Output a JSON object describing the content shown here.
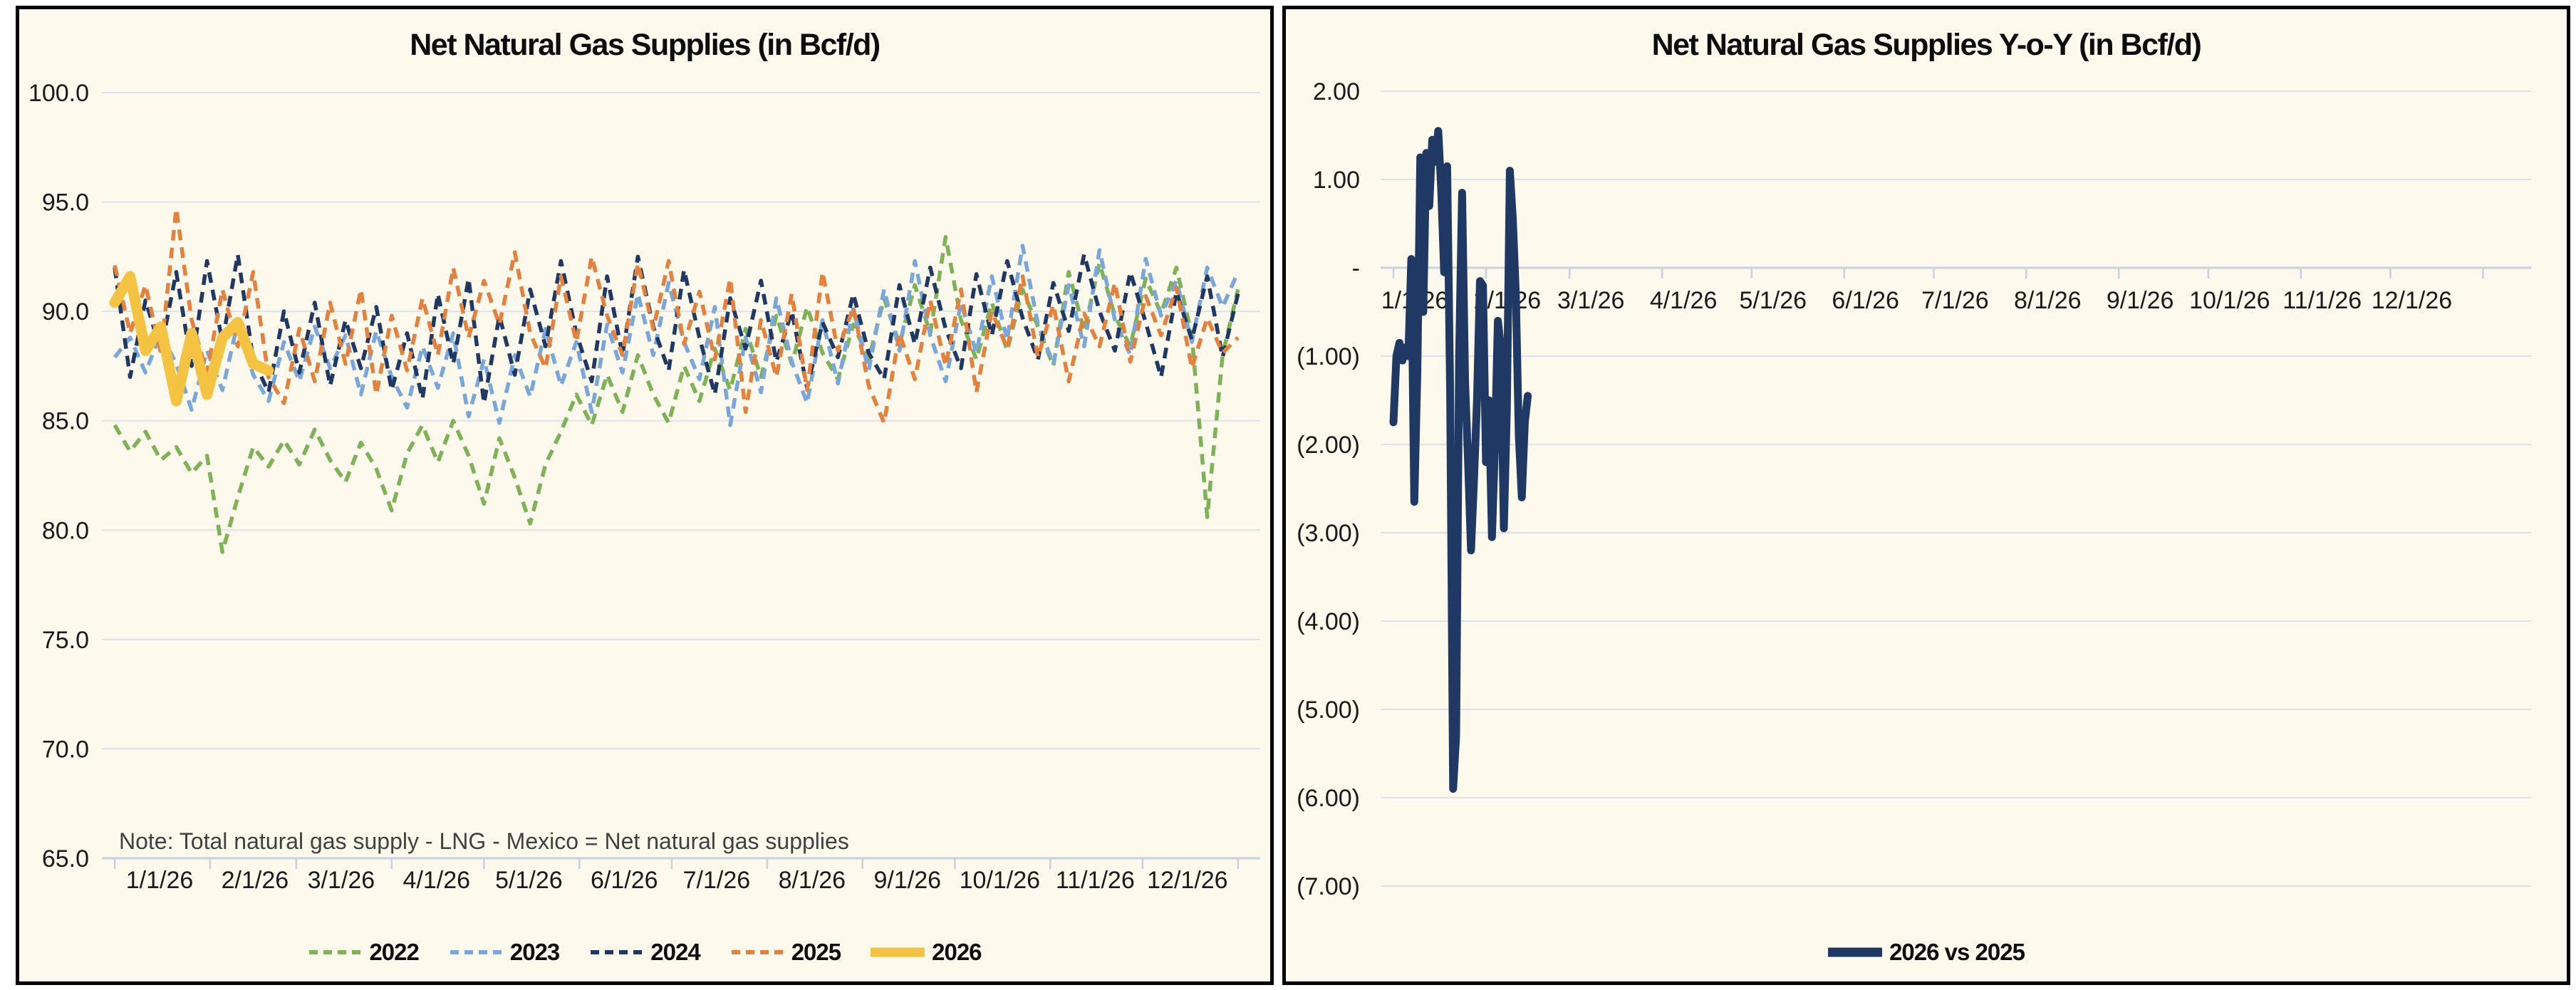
{
  "colors": {
    "panel_background": "#fdf9ec",
    "panel_border": "#000000",
    "gridline": "#dbe2ee",
    "axis_line": "#c7d1e0",
    "tick_mark": "#c7d1e0",
    "axis_text": "#1a1a1a",
    "note_text": "#404040"
  },
  "chart_data": [
    {
      "type": "line",
      "title": "Net Natural Gas Supplies (in Bcf/d)",
      "note": "Note: Total natural gas supply - LNG - Mexico = Net natural gas supplies",
      "ylim": [
        65,
        100
      ],
      "y_step": 5,
      "grid": true,
      "legend_position": "bottom",
      "x_unit": "day_of_year_2026_axis",
      "y_tick_labels": [
        "100.0",
        "95.0",
        "90.0",
        "85.0",
        "80.0",
        "75.0",
        "70.0",
        "65.0"
      ],
      "x_tick_labels": [
        "1/1/26",
        "2/1/26",
        "3/1/26",
        "4/1/26",
        "5/1/26",
        "6/1/26",
        "7/1/26",
        "8/1/26",
        "9/1/26",
        "10/1/26",
        "11/1/26",
        "12/1/26"
      ],
      "series": [
        {
          "name": "2022",
          "color": "#7db356",
          "style": "dashed",
          "start_day": 1,
          "day_step": 5,
          "values": [
            84.8,
            83.6,
            84.5,
            83.2,
            83.8,
            82.6,
            83.4,
            79.0,
            81.5,
            83.8,
            82.9,
            84.1,
            83.0,
            84.6,
            83.2,
            82.2,
            84.0,
            82.8,
            80.9,
            83.5,
            84.8,
            83.1,
            85.0,
            83.4,
            81.2,
            84.2,
            82.4,
            80.3,
            83.0,
            84.5,
            86.2,
            84.8,
            87.1,
            85.4,
            88.0,
            86.2,
            84.9,
            87.5,
            85.9,
            88.3,
            86.4,
            89.2,
            87.0,
            89.8,
            87.6,
            90.2,
            88.1,
            86.9,
            89.4,
            87.8,
            90.6,
            88.5,
            91.2,
            89.0,
            93.4,
            89.6,
            87.8,
            90.4,
            88.2,
            91.0,
            89.3,
            87.5,
            91.8,
            89.1,
            92.2,
            89.8,
            88.4,
            91.5,
            89.9,
            92.0,
            88.9,
            80.6,
            88.0,
            91.0
          ]
        },
        {
          "name": "2023",
          "color": "#79a7dc",
          "style": "dashed",
          "start_day": 1,
          "day_step": 5,
          "values": [
            87.9,
            88.8,
            87.2,
            89.0,
            87.6,
            85.5,
            88.2,
            86.4,
            89.5,
            87.1,
            85.9,
            88.6,
            86.8,
            89.3,
            87.4,
            88.9,
            86.2,
            89.1,
            87.0,
            85.6,
            88.4,
            86.5,
            89.0,
            85.2,
            87.8,
            84.9,
            88.0,
            86.1,
            89.2,
            86.6,
            88.6,
            85.4,
            89.4,
            87.2,
            90.8,
            88.0,
            91.3,
            88.6,
            86.9,
            90.2,
            84.8,
            88.8,
            86.3,
            90.6,
            87.7,
            85.8,
            89.6,
            86.7,
            90.1,
            87.3,
            91.0,
            88.2,
            92.3,
            88.9,
            86.8,
            90.4,
            88.1,
            91.6,
            88.7,
            93.0,
            89.4,
            87.6,
            91.2,
            88.4,
            92.8,
            89.6,
            88.0,
            92.4,
            89.8,
            91.4,
            88.6,
            92.0,
            90.2,
            91.8
          ]
        },
        {
          "name": "2024",
          "color": "#1f3864",
          "style": "dashed",
          "start_day": 1,
          "day_step": 5,
          "values": [
            92.0,
            87.0,
            90.5,
            88.2,
            91.8,
            87.5,
            92.3,
            88.6,
            92.6,
            87.8,
            86.3,
            90.0,
            87.2,
            90.4,
            86.6,
            89.6,
            87.4,
            90.2,
            86.4,
            89.0,
            86.0,
            90.8,
            87.6,
            91.5,
            85.8,
            89.8,
            87.1,
            91.0,
            88.4,
            92.3,
            89.0,
            86.8,
            91.6,
            88.0,
            92.5,
            89.3,
            87.3,
            91.9,
            88.8,
            86.2,
            90.6,
            88.3,
            91.4,
            87.7,
            90.0,
            86.5,
            89.5,
            87.9,
            90.8,
            88.1,
            86.9,
            91.2,
            88.5,
            92.0,
            89.2,
            87.4,
            91.7,
            88.9,
            92.3,
            89.7,
            87.8,
            91.3,
            89.1,
            92.6,
            90.0,
            88.2,
            91.8,
            89.5,
            87.0,
            90.9,
            88.7,
            91.6,
            87.9,
            90.8
          ]
        },
        {
          "name": "2025",
          "color": "#e5813c",
          "style": "dashed",
          "start_day": 1,
          "day_step": 5,
          "values": [
            92.1,
            89.0,
            91.2,
            88.1,
            94.7,
            89.6,
            87.2,
            91.0,
            88.4,
            91.8,
            87.0,
            85.8,
            89.2,
            86.8,
            90.4,
            87.6,
            91.0,
            86.2,
            89.8,
            87.3,
            90.6,
            88.0,
            92.0,
            88.8,
            91.4,
            89.4,
            92.7,
            89.0,
            87.4,
            91.6,
            88.6,
            92.5,
            89.8,
            88.0,
            92.2,
            89.2,
            92.3,
            88.5,
            90.9,
            87.8,
            91.5,
            85.4,
            89.6,
            87.0,
            90.8,
            86.4,
            91.8,
            88.2,
            90.2,
            86.6,
            84.9,
            89.0,
            86.9,
            90.5,
            87.5,
            91.0,
            86.3,
            90.0,
            88.3,
            91.6,
            87.9,
            90.3,
            86.8,
            89.9,
            88.4,
            91.3,
            87.7,
            90.7,
            88.9,
            91.1,
            87.4,
            89.7,
            88.1,
            88.8
          ]
        },
        {
          "name": "2026",
          "color": "#f5c342",
          "style": "solid",
          "start_day": 1,
          "day_step": 5,
          "values": [
            90.4,
            91.6,
            88.2,
            89.3,
            85.9,
            89.0,
            86.2,
            88.8,
            89.5,
            87.6,
            87.3
          ]
        }
      ]
    },
    {
      "type": "line",
      "title": "Net Natural Gas Supplies Y-o-Y (in Bcf/d)",
      "ylim": [
        -7,
        2
      ],
      "y_step": 1,
      "grid": true,
      "legend_position": "bottom",
      "x_unit": "day_of_year_2026_axis",
      "y_tick_labels": [
        "2.00",
        "1.00",
        "-",
        "(1.00)",
        "(2.00)",
        "(3.00)",
        "(4.00)",
        "(5.00)",
        "(6.00)",
        "(7.00)"
      ],
      "x_tick_labels": [
        "1/1/26",
        "2/1/26",
        "3/1/26",
        "4/1/26",
        "5/1/26",
        "6/1/26",
        "7/1/26",
        "8/1/26",
        "9/1/26",
        "10/1/26",
        "11/1/26",
        "12/1/26"
      ],
      "series": [
        {
          "name": "2026 vs 2025",
          "color": "#1f3864",
          "style": "solid",
          "start_day": 1,
          "day_step": 1,
          "values": [
            -1.75,
            -1.0,
            -0.85,
            -1.05,
            -0.9,
            -1.0,
            0.1,
            -2.65,
            -1.2,
            1.25,
            -0.5,
            1.3,
            0.7,
            1.45,
            1.2,
            1.55,
            0.9,
            -0.05,
            1.15,
            -1.4,
            -5.9,
            -5.3,
            -1.0,
            0.85,
            -1.3,
            -2.2,
            -3.2,
            -2.4,
            -1.5,
            -0.15,
            -0.2,
            -2.2,
            -1.5,
            -3.05,
            -2.0,
            -0.6,
            -0.9,
            -2.95,
            -1.6,
            1.1,
            0.55,
            -0.3,
            -1.9,
            -2.6,
            -1.75,
            -1.45
          ]
        }
      ]
    }
  ]
}
